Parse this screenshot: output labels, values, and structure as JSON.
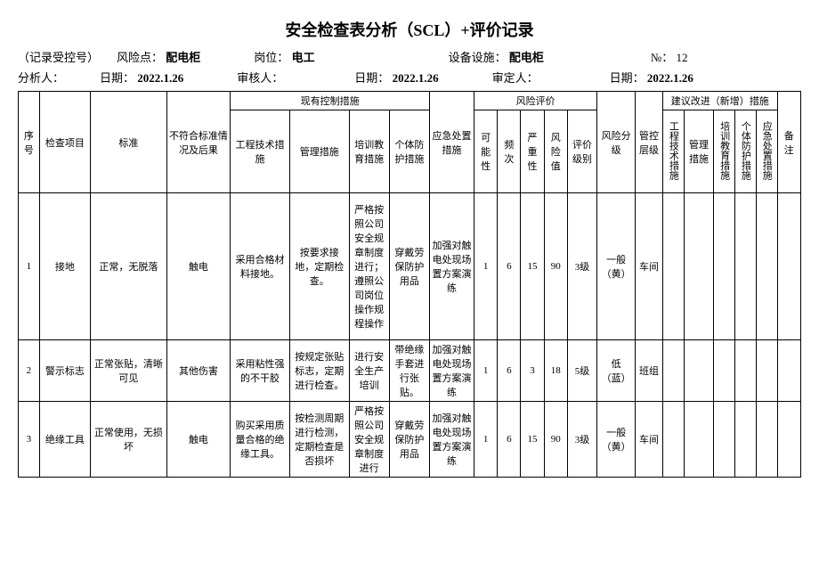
{
  "title": "安全检查表分析（SCL）+评价记录",
  "header": {
    "record_no_label": "（记录受控号）",
    "risk_point_label": "风险点：",
    "risk_point": "配电柜",
    "position_label": "岗位：",
    "position": "电工",
    "facility_label": "设备设施：",
    "facility": "配电柜",
    "no_label": "№：",
    "no": "12",
    "analyst_label": "分析人：",
    "date1_label": "日期：",
    "date1": "2022.1.26",
    "reviewer_label": "审核人：",
    "date2_label": "日期：",
    "date2": "2022.1.26",
    "approver_label": "审定人：",
    "date3_label": "日期：",
    "date3": "2022.1.26"
  },
  "thead": {
    "seq": "序号",
    "item": "检查项目",
    "standard": "标准",
    "noncompliance": "不符合标准情况及后果",
    "existing_group": "现有控制措施",
    "eng": "工程技术措施",
    "mgmt": "管理措施",
    "train": "培训教育措施",
    "ppe": "个体防护措施",
    "emergency": "应急处置措施",
    "risk_group": "风险评价",
    "possibility": "可能性",
    "frequency": "频次",
    "severity": "严重性",
    "risk_value": "风险值",
    "rating_level": "评价级别",
    "risk_class": "风险分级",
    "control_level": "管控层级",
    "suggest_group": "建议改进（新增）措施",
    "sug_eng": "工程技术措施",
    "sug_mgmt": "管理措施",
    "sug_train": "培训教育措施",
    "sug_ppe": "个体防护措施",
    "sug_emerg": "应急处置措施",
    "note": "备注"
  },
  "rows": [
    {
      "seq": "1",
      "item": "接地",
      "standard": "正常，无脱落",
      "noncompliance": "触电",
      "eng": "采用合格材料接地。",
      "mgmt": "按要求接地，定期检查。",
      "train": "严格按照公司安全规章制度进行；遵照公司岗位操作规程操作",
      "ppe": "穿戴劳保防护用品",
      "emergency": "加强对触电处现场置方案演练",
      "possibility": "1",
      "frequency": "6",
      "severity": "15",
      "risk_value": "90",
      "rating_level": "3级",
      "risk_class": "一般（黄）",
      "control_level": "车间",
      "sug_eng": "",
      "sug_mgmt": "",
      "sug_train": "",
      "sug_ppe": "",
      "sug_emerg": "",
      "note": ""
    },
    {
      "seq": "2",
      "item": "警示标志",
      "standard": "正常张贴，清晰可见",
      "noncompliance": "其他伤害",
      "eng": "采用粘性强的不干胶",
      "mgmt": "按规定张贴标志，定期进行检查。",
      "train": "进行安全生产培训",
      "ppe": "带绝缘手套进行张贴。",
      "emergency": "加强对触电处现场置方案演练",
      "possibility": "1",
      "frequency": "6",
      "severity": "3",
      "risk_value": "18",
      "rating_level": "5级",
      "risk_class": "低（蓝）",
      "control_level": "班组",
      "sug_eng": "",
      "sug_mgmt": "",
      "sug_train": "",
      "sug_ppe": "",
      "sug_emerg": "",
      "note": ""
    },
    {
      "seq": "3",
      "item": "绝缘工具",
      "standard": "正常使用，无损坏",
      "noncompliance": "触电",
      "eng": "购买采用质量合格的绝缘工具。",
      "mgmt": "按检测周期进行检测，定期检查是否损坏",
      "train": "严格按照公司安全规章制度进行",
      "ppe": "穿戴劳保防护用品",
      "emergency": "加强对触电处现场置方案演练",
      "possibility": "1",
      "frequency": "6",
      "severity": "15",
      "risk_value": "90",
      "rating_level": "3级",
      "risk_class": "一般（黄）",
      "control_level": "车间",
      "sug_eng": "",
      "sug_mgmt": "",
      "sug_train": "",
      "sug_ppe": "",
      "sug_emerg": "",
      "note": ""
    }
  ]
}
